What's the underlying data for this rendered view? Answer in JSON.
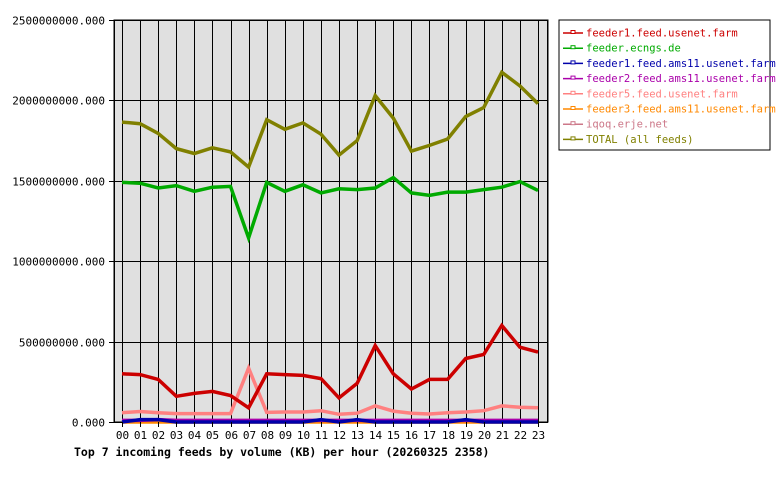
{
  "chart_data": {
    "type": "line",
    "title": "Top 7 incoming feeds by volume (KB) per hour (20260325 2358)",
    "xlabel": "",
    "ylabel": "",
    "x": [
      "00",
      "01",
      "02",
      "03",
      "04",
      "05",
      "06",
      "07",
      "08",
      "09",
      "10",
      "11",
      "12",
      "13",
      "14",
      "15",
      "16",
      "17",
      "18",
      "19",
      "20",
      "21",
      "22",
      "23"
    ],
    "ylim": [
      0,
      2500000000
    ],
    "yticks": [
      0,
      500000000,
      1000000000,
      1500000000,
      2000000000,
      2500000000
    ],
    "ytick_labels": [
      "0.000",
      "500000000.000",
      "1000000000.000",
      "1500000000.000",
      "2000000000.000",
      "2500000000.000"
    ],
    "grid": true,
    "legend_position": "right",
    "series": [
      {
        "name": "feeder1.feed.usenet.farm",
        "color": "#cc0000",
        "values": [
          300000000,
          295000000,
          265000000,
          160000000,
          178000000,
          190000000,
          165000000,
          88000000,
          300000000,
          295000000,
          290000000,
          270000000,
          150000000,
          240000000,
          475000000,
          300000000,
          205000000,
          265000000,
          265000000,
          395000000,
          420000000,
          600000000,
          465000000,
          435000000
        ]
      },
      {
        "name": "feeder.ecngs.de",
        "color": "#00aa00",
        "values": [
          1490000000,
          1485000000,
          1455000000,
          1470000000,
          1435000000,
          1460000000,
          1465000000,
          1145000000,
          1490000000,
          1435000000,
          1475000000,
          1425000000,
          1450000000,
          1445000000,
          1455000000,
          1520000000,
          1425000000,
          1410000000,
          1430000000,
          1430000000,
          1445000000,
          1460000000,
          1495000000,
          1440000000
        ]
      },
      {
        "name": "feeder1.feed.ams11.usenet.farm",
        "color": "#0000aa",
        "values": [
          0,
          15000000,
          15000000,
          0,
          0,
          0,
          0,
          0,
          0,
          0,
          0,
          15000000,
          0,
          15000000,
          0,
          0,
          0,
          0,
          0,
          15000000,
          0,
          0,
          0,
          0
        ]
      },
      {
        "name": "feeder2.feed.ams11.usenet.farm",
        "color": "#aa00aa",
        "values": [
          10000000,
          10000000,
          15000000,
          10000000,
          10000000,
          10000000,
          10000000,
          10000000,
          10000000,
          10000000,
          10000000,
          10000000,
          10000000,
          10000000,
          10000000,
          10000000,
          10000000,
          10000000,
          10000000,
          10000000,
          10000000,
          10000000,
          10000000,
          10000000
        ]
      },
      {
        "name": "feeder5.feed.usenet.farm",
        "color": "#ff8080",
        "values": [
          58000000,
          65000000,
          58000000,
          52000000,
          52000000,
          52000000,
          52000000,
          335000000,
          60000000,
          62000000,
          62000000,
          70000000,
          48000000,
          55000000,
          100000000,
          68000000,
          55000000,
          50000000,
          58000000,
          62000000,
          70000000,
          100000000,
          92000000,
          88000000
        ]
      },
      {
        "name": "feeder3.feed.ams11.usenet.farm",
        "color": "#ff8800",
        "values": [
          0,
          0,
          0,
          0,
          0,
          0,
          0,
          0,
          0,
          0,
          0,
          0,
          0,
          0,
          0,
          0,
          0,
          0,
          0,
          0,
          0,
          0,
          0,
          0
        ]
      },
      {
        "name": "iqoq.erje.net",
        "color": "#cc7788",
        "values": [
          5000000,
          5000000,
          5000000,
          5000000,
          5000000,
          5000000,
          5000000,
          5000000,
          5000000,
          5000000,
          5000000,
          5000000,
          5000000,
          5000000,
          5000000,
          5000000,
          5000000,
          5000000,
          5000000,
          5000000,
          5000000,
          5000000,
          5000000,
          5000000
        ]
      },
      {
        "name": "TOTAL (all feeds)",
        "color": "#808000",
        "values": [
          1865000000,
          1855000000,
          1795000000,
          1700000000,
          1670000000,
          1705000000,
          1680000000,
          1585000000,
          1880000000,
          1820000000,
          1860000000,
          1790000000,
          1660000000,
          1750000000,
          2030000000,
          1890000000,
          1685000000,
          1720000000,
          1760000000,
          1900000000,
          1955000000,
          2175000000,
          2090000000,
          1980000000
        ]
      }
    ]
  },
  "legend": {
    "items": [
      {
        "label": "feeder1.feed.usenet.farm",
        "color": "#cc0000"
      },
      {
        "label": "feeder.ecngs.de",
        "color": "#00aa00"
      },
      {
        "label": "feeder1.feed.ams11.usenet.farm",
        "color": "#0000aa"
      },
      {
        "label": "feeder2.feed.ams11.usenet.farm",
        "color": "#aa00aa"
      },
      {
        "label": "feeder5.feed.usenet.farm",
        "color": "#ff8080"
      },
      {
        "label": "feeder3.feed.ams11.usenet.farm",
        "color": "#ff8800"
      },
      {
        "label": "iqoq.erje.net",
        "color": "#cc7788"
      },
      {
        "label": "TOTAL (all feeds)",
        "color": "#808000"
      }
    ]
  },
  "style": {
    "plot_bg": "#e0e0e0",
    "grid_color": "#000000",
    "frame_color": "#000000"
  }
}
